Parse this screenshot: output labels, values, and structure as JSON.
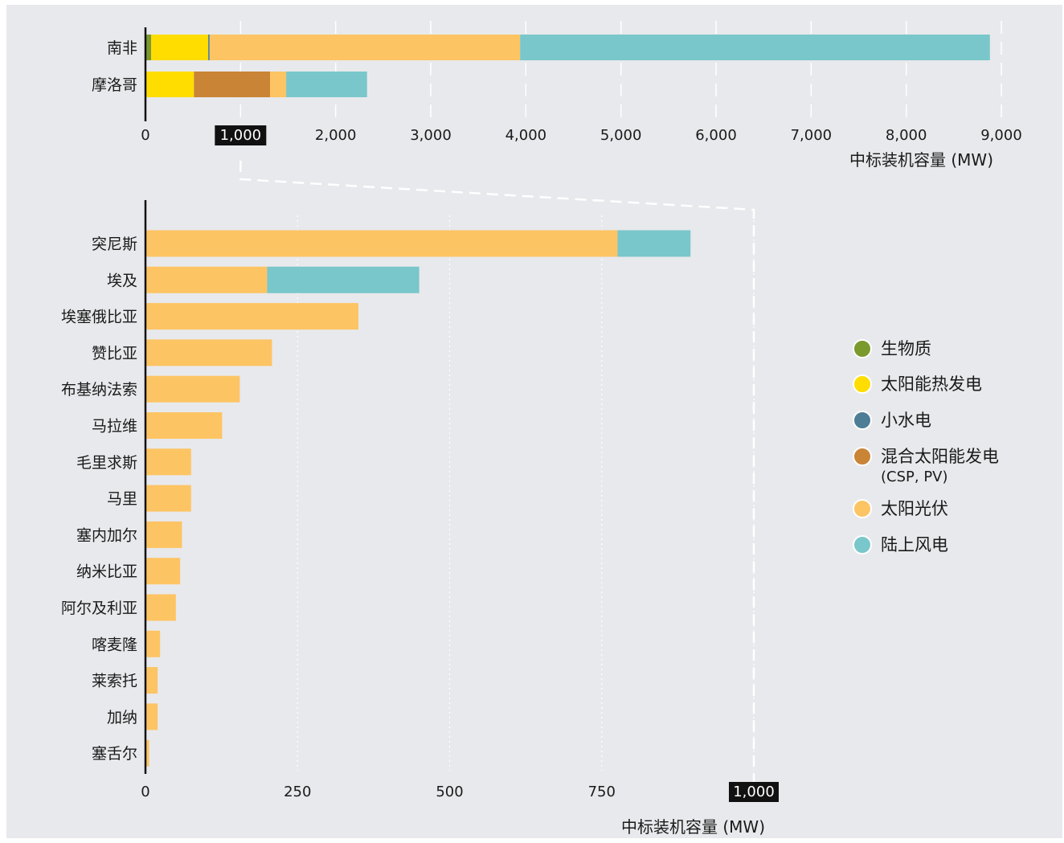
{
  "legend": [
    {
      "key": "biomass",
      "label": "生物质",
      "color": "#7a9a2e"
    },
    {
      "key": "csp",
      "label": "太阳能热发电",
      "color": "#ffdd00"
    },
    {
      "key": "hydro",
      "label": "小水电",
      "color": "#4e7d96"
    },
    {
      "key": "hybrid",
      "label": "混合太阳能发电",
      "sublabel": "(CSP, PV)",
      "color": "#c98436"
    },
    {
      "key": "pv",
      "label": "太阳光伏",
      "color": "#fdc463"
    },
    {
      "key": "wind",
      "label": "陆上风电",
      "color": "#79c7ca"
    }
  ],
  "chart_data": [
    {
      "type": "bar",
      "orientation": "horizontal",
      "stacked": true,
      "categories": [
        "南非",
        "摩洛哥"
      ],
      "series": [
        {
          "name": "生物质",
          "values": [
            60,
            0
          ]
        },
        {
          "name": "太阳能热发电",
          "values": [
            600,
            510
          ]
        },
        {
          "name": "小水电",
          "values": [
            15,
            0
          ]
        },
        {
          "name": "混合太阳能发电 (CSP, PV)",
          "values": [
            0,
            800
          ]
        },
        {
          "name": "太阳光伏",
          "values": [
            3265,
            170
          ]
        },
        {
          "name": "陆上风电",
          "values": [
            4940,
            850
          ]
        }
      ],
      "xlim": [
        0,
        9000
      ],
      "xticks": [
        0,
        1000,
        2000,
        3000,
        4000,
        5000,
        6000,
        7000,
        8000,
        9000
      ],
      "xtick_labels": [
        "0",
        "1,000",
        "2,000",
        "3,000",
        "4,000",
        "5,000",
        "6,000",
        "7,000",
        "8,000",
        "9,000"
      ],
      "highlight_tick": "1,000",
      "xlabel": "中标装机容量 (MW)",
      "grid": "vertical dashed"
    },
    {
      "type": "bar",
      "orientation": "horizontal",
      "stacked": true,
      "categories": [
        "突尼斯",
        "埃及",
        "埃塞俄比亚",
        "赞比亚",
        "布基纳法索",
        "马拉维",
        "毛里求斯",
        "马里",
        "塞内加尔",
        "纳米比亚",
        "阿尔及利亚",
        "喀麦隆",
        "莱索托",
        "加纳",
        "塞舌尔"
      ],
      "series": [
        {
          "name": "太阳光伏",
          "values": [
            776,
            200,
            350,
            208,
            155,
            126,
            75,
            75,
            60,
            57,
            50,
            24,
            20,
            20,
            6
          ]
        },
        {
          "name": "陆上风电",
          "values": [
            120,
            250,
            0,
            0,
            0,
            0,
            0,
            0,
            0,
            0,
            0,
            0,
            0,
            0,
            0
          ]
        }
      ],
      "xlim": [
        0,
        1000
      ],
      "xticks": [
        0,
        250,
        500,
        750,
        1000
      ],
      "xtick_labels": [
        "0",
        "250",
        "500",
        "750",
        "1,000"
      ],
      "highlight_tick": "1,000",
      "xlabel": "中标装机容量 (MW)",
      "grid": "vertical dotted"
    }
  ]
}
